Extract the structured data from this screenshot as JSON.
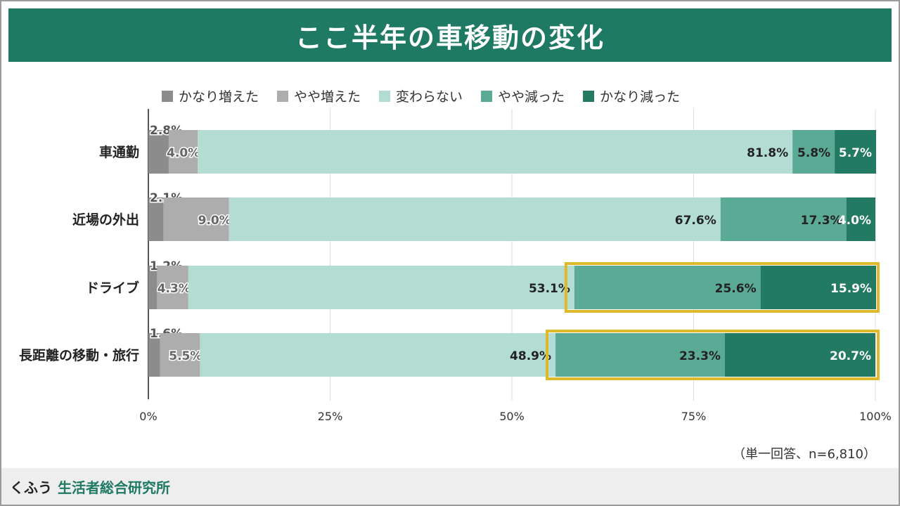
{
  "title": "ここ半年の車移動の変化",
  "note": "（単一回答、n=6,810）",
  "footer": {
    "brand": "くふう",
    "brand_sub": "生活者総合研究所"
  },
  "colors": {
    "title_bg": "#1e7a62",
    "series": [
      "#8c8c8c",
      "#adadad",
      "#b3ddd2",
      "#5baa96",
      "#227a62"
    ],
    "highlight": "#e0b92a"
  },
  "chart_data": {
    "type": "bar",
    "orientation": "horizontal",
    "stacked": true,
    "categories": [
      "車通勤",
      "近場の外出",
      "ドライブ",
      "長距離の移動・旅行"
    ],
    "series": [
      {
        "name": "かなり増えた",
        "values": [
          2.8,
          2.1,
          1.2,
          1.6
        ]
      },
      {
        "name": "やや増えた",
        "values": [
          4.0,
          9.0,
          4.3,
          5.5
        ]
      },
      {
        "name": "変わらない",
        "values": [
          81.8,
          67.6,
          53.1,
          48.9
        ]
      },
      {
        "name": "やや減った",
        "values": [
          5.8,
          17.3,
          25.6,
          23.3
        ]
      },
      {
        "name": "かなり減った",
        "values": [
          5.7,
          4.0,
          15.9,
          20.7
        ]
      }
    ],
    "xlim": [
      0,
      100
    ],
    "xticks": [
      "0%",
      "25%",
      "50%",
      "75%",
      "100%"
    ],
    "value_suffix": "%",
    "grid": true,
    "legend_position": "top",
    "highlighted_categories": [
      "ドライブ",
      "長距離の移動・旅行"
    ]
  }
}
